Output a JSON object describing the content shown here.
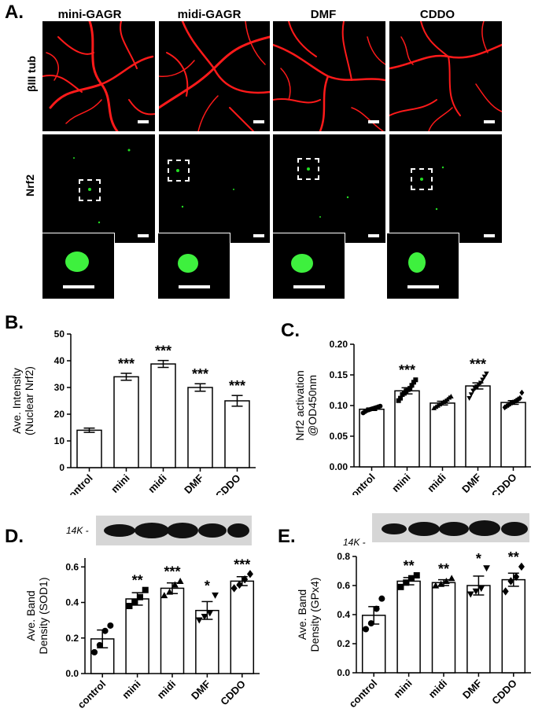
{
  "panel_a": {
    "label": "A.",
    "columns": [
      "mini-GAGR",
      "midi-GAGR",
      "DMF",
      "CDDO"
    ],
    "rows": [
      "βIII tub",
      "Nrf2"
    ],
    "colors": {
      "tubulin": "#ff1a1a",
      "nrf2": "#22dd22"
    }
  },
  "chart_data": [
    {
      "id": "B",
      "type": "bar",
      "panel_label": "B.",
      "categories": [
        "control",
        "mini",
        "midi",
        "DMF",
        "CDDO"
      ],
      "values": [
        14,
        34,
        38.8,
        30,
        25
      ],
      "errors": [
        0.8,
        1.3,
        1.3,
        1.4,
        2.0
      ],
      "significance": [
        "",
        "***",
        "***",
        "***",
        "***"
      ],
      "ylabel_line1": "Ave. Intensity",
      "ylabel_line2": "(Nuclear Nrf2)",
      "ylim": [
        0,
        50
      ],
      "yticks": [
        0,
        10,
        20,
        30,
        40,
        50
      ],
      "ytick_labels": [
        "0",
        "10",
        "20",
        "30",
        "40",
        "50"
      ]
    },
    {
      "id": "C",
      "type": "bar",
      "panel_label": "C.",
      "categories": [
        "control",
        "mini",
        "midi",
        "DMF",
        "CDDO"
      ],
      "values": [
        0.094,
        0.124,
        0.104,
        0.132,
        0.105
      ],
      "errors": [
        0.002,
        0.005,
        0.003,
        0.005,
        0.003
      ],
      "significance": [
        "",
        "***",
        "",
        "***",
        ""
      ],
      "markers": [
        "circle",
        "square",
        "triangle",
        "triangle-down",
        "diamond"
      ],
      "points": [
        [
          0.088,
          0.09,
          0.092,
          0.093,
          0.094,
          0.095,
          0.096,
          0.097,
          0.098,
          0.099
        ],
        [
          0.108,
          0.112,
          0.118,
          0.12,
          0.124,
          0.126,
          0.128,
          0.133,
          0.138,
          0.142
        ],
        [
          0.096,
          0.098,
          0.1,
          0.102,
          0.104,
          0.106,
          0.108,
          0.11,
          0.113,
          0.115
        ],
        [
          0.112,
          0.118,
          0.124,
          0.128,
          0.131,
          0.134,
          0.137,
          0.142,
          0.147,
          0.152
        ],
        [
          0.097,
          0.099,
          0.101,
          0.103,
          0.105,
          0.106,
          0.108,
          0.11,
          0.112,
          0.121
        ]
      ],
      "ylabel_line1": "Nrf2 activation",
      "ylabel_line2": "@OD450nm",
      "ylim": [
        0,
        0.2
      ],
      "yticks": [
        0,
        0.05,
        0.1,
        0.15,
        0.2
      ],
      "ytick_labels": [
        "0.00",
        "0.05",
        "0.10",
        "0.15",
        "0.20"
      ]
    },
    {
      "id": "D",
      "type": "bar",
      "panel_label": "D.",
      "blot_label": "14K -",
      "categories": [
        "control",
        "mini",
        "midi",
        "DMF",
        "CDDO"
      ],
      "values": [
        0.195,
        0.42,
        0.48,
        0.355,
        0.52
      ],
      "errors": [
        0.05,
        0.035,
        0.03,
        0.05,
        0.025
      ],
      "significance": [
        "",
        "**",
        "***",
        "*",
        "***"
      ],
      "markers": [
        "circle",
        "square",
        "triangle",
        "triangle-down",
        "diamond"
      ],
      "points": [
        [
          0.12,
          0.16,
          0.24,
          0.27
        ],
        [
          0.38,
          0.4,
          0.43,
          0.47
        ],
        [
          0.44,
          0.46,
          0.5,
          0.52
        ],
        [
          0.3,
          0.32,
          0.34,
          0.44
        ],
        [
          0.48,
          0.5,
          0.53,
          0.56
        ]
      ],
      "ylabel_line1": "Ave. Band",
      "ylabel_line2": "Density (SOD1)",
      "ylim": [
        0,
        0.65
      ],
      "yticks": [
        0,
        0.2,
        0.4,
        0.6
      ],
      "ytick_labels": [
        "0.0",
        "0.2",
        "0.4",
        "0.6"
      ]
    },
    {
      "id": "E",
      "type": "bar",
      "panel_label": "E.",
      "blot_label": "14K -",
      "categories": [
        "control",
        "mini",
        "midi",
        "DMF",
        "CDDO"
      ],
      "values": [
        0.395,
        0.63,
        0.62,
        0.6,
        0.64
      ],
      "errors": [
        0.06,
        0.025,
        0.02,
        0.065,
        0.045
      ],
      "significance": [
        "",
        "**",
        "**",
        "*",
        "**"
      ],
      "markers": [
        "circle",
        "square",
        "triangle",
        "triangle-down",
        "diamond"
      ],
      "points": [
        [
          0.3,
          0.34,
          0.44,
          0.51
        ],
        [
          0.59,
          0.62,
          0.65,
          0.67
        ],
        [
          0.6,
          0.61,
          0.63,
          0.65
        ],
        [
          0.54,
          0.56,
          0.58,
          0.72
        ],
        [
          0.56,
          0.63,
          0.66,
          0.73
        ]
      ],
      "ylabel_line1": "Ave. Band",
      "ylabel_line2": "Density (GPx4)",
      "ylim": [
        0,
        0.8
      ],
      "yticks": [
        0,
        0.2,
        0.4,
        0.6,
        0.8
      ],
      "ytick_labels": [
        "0.0",
        "0.2",
        "0.4",
        "0.6",
        "0.8"
      ]
    }
  ]
}
